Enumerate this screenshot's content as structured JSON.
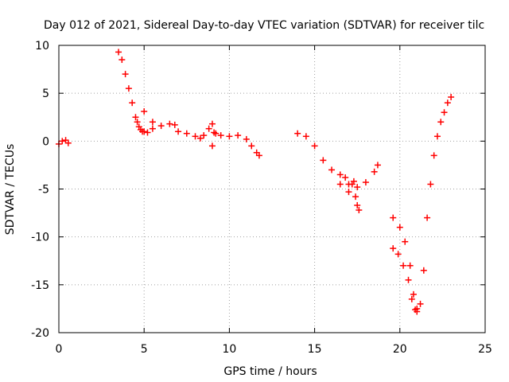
{
  "chart_data": {
    "type": "scatter",
    "title": "Day 012 of 2021, Sidereal Day-to-day VTEC variation (SDTVAR) for receiver tilc",
    "xlabel": "GPS time / hours",
    "ylabel": "SDTVAR / TECUs",
    "xlim": [
      0,
      25
    ],
    "ylim": [
      -20,
      10
    ],
    "xticks": [
      "0",
      "5",
      "10",
      "15",
      "20",
      "25"
    ],
    "yticks": [
      "-20",
      "-15",
      "-10",
      "-5",
      "0",
      "5",
      "10"
    ],
    "grid": true,
    "marker": "+",
    "series": [
      {
        "name": "SDTVAR",
        "color": "#ff0000",
        "x": [
          0.0,
          0.2,
          0.4,
          0.55,
          3.5,
          3.7,
          3.9,
          4.1,
          4.3,
          4.5,
          4.6,
          4.7,
          4.8,
          4.9,
          5.0,
          5.2,
          5.5,
          5.0,
          5.5,
          6.0,
          6.5,
          6.8,
          7.0,
          7.5,
          8.0,
          8.3,
          8.5,
          8.8,
          9.0,
          9.1,
          9.0,
          9.2,
          9.5,
          10.0,
          10.5,
          11.0,
          11.3,
          11.6,
          11.75,
          14.0,
          14.5,
          15.0,
          15.5,
          16.0,
          16.5,
          17.0,
          17.2,
          17.3,
          17.4,
          17.5,
          17.6,
          16.5,
          16.8,
          17.0,
          17.5,
          18.0,
          18.5,
          18.7,
          19.6,
          20.0,
          20.3,
          20.6,
          20.8,
          21.0,
          21.2,
          21.4,
          21.6,
          21.8,
          22.0,
          22.2,
          22.4,
          22.6,
          22.8,
          23.0,
          19.6,
          19.9,
          20.2,
          20.5,
          20.7,
          20.9,
          21.0
        ],
        "y": [
          -0.3,
          0.0,
          0.1,
          -0.2,
          9.3,
          8.5,
          7.0,
          5.5,
          4.0,
          2.5,
          2.0,
          1.5,
          1.2,
          1.0,
          1.0,
          0.9,
          1.3,
          3.1,
          2.0,
          1.6,
          1.8,
          1.7,
          1.0,
          0.8,
          0.5,
          0.3,
          0.6,
          1.3,
          1.8,
          0.9,
          -0.5,
          0.8,
          0.6,
          0.5,
          0.6,
          0.2,
          -0.5,
          -1.2,
          -1.5,
          0.8,
          0.5,
          -0.5,
          -2.0,
          -3.0,
          -4.5,
          -5.3,
          -4.5,
          -4.2,
          -5.8,
          -6.7,
          -7.2,
          -3.5,
          -3.8,
          -4.5,
          -4.8,
          -4.3,
          -3.2,
          -2.5,
          -8.0,
          -9.0,
          -10.5,
          -13.0,
          -16.0,
          -17.5,
          -17.0,
          -13.5,
          -8.0,
          -4.5,
          -1.5,
          0.5,
          2.0,
          3.0,
          4.0,
          4.6,
          -11.2,
          -11.8,
          -13.0,
          -14.5,
          -16.5,
          -17.6,
          -17.8
        ]
      }
    ]
  }
}
